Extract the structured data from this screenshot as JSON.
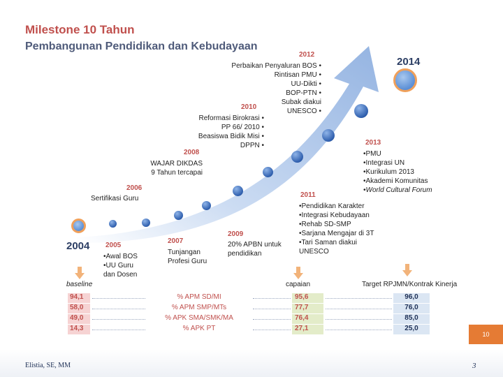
{
  "title": "Milestone 10 Tahun",
  "subtitle": "Pembangunan Pendidikan dan Kebudayaan",
  "timeline": {
    "start_year": "2004",
    "end_year": "2014",
    "m2005": {
      "year": "2005",
      "items": [
        "Awal BOS",
        "UU Guru dan Dosen"
      ]
    },
    "m2006": {
      "year": "2006",
      "items": [
        "Sertifikasi Guru"
      ]
    },
    "m2007": {
      "year": "2007",
      "items": [
        "Tunjangan Profesi Guru"
      ]
    },
    "m2008": {
      "year": "2008",
      "items": [
        "WAJAR DIKDAS",
        "9 Tahun  tercapai"
      ]
    },
    "m2009": {
      "year": "2009",
      "items": [
        "20% APBN untuk pendidikan"
      ]
    },
    "m2010": {
      "year": "2010",
      "items": [
        "Reformasi Birokrasi",
        "PP 66/ 2010",
        "Beasiswa Bidik Misi",
        "DPPN"
      ]
    },
    "m2011": {
      "year": "2011",
      "items": [
        "Pendidikan Karakter",
        "Integrasi Kebudayaan",
        "Rehab SD-SMP",
        "Sarjana Mengajar di 3T",
        "Tari Saman diakui UNESCO"
      ]
    },
    "m2012": {
      "year": "2012",
      "items": [
        "Perbaikan Penyaluran BOS",
        "Rintisan PMU",
        "UU-Dikti",
        "BOP-PTN",
        "Subak diakui UNESCO"
      ]
    },
    "m2013": {
      "year": "2013",
      "items": [
        "PMU",
        "Integrasi UN",
        "Kurikulum 2013",
        "Akademi Komunitas",
        "World Cultural Forum"
      ]
    }
  },
  "table": {
    "baseline_label": "baseline",
    "capaian_label": "capaian",
    "target_label": "Target RPJMN/Kontrak Kinerja",
    "rows": [
      {
        "baseline": "94,1",
        "name": "% APM SD/MI",
        "capaian": "95,6",
        "target": "96,0"
      },
      {
        "baseline": "58,0",
        "name": "% APM SMP/MTs",
        "capaian": "77,7",
        "target": "76,0"
      },
      {
        "baseline": "49,0",
        "name": "% APK SMA/SMK/MA",
        "capaian": "76,4",
        "target": "85,0"
      },
      {
        "baseline": "14,3",
        "name": "% APK PT",
        "capaian": "27,1",
        "target": "25,0"
      }
    ]
  },
  "footer": {
    "author": "Elistia, SE, MM",
    "page": "3",
    "slide_number": "10"
  },
  "colors": {
    "accent_red": "#c0504d",
    "navy": "#2c3e64",
    "arrow_blue": "#a9c4e9",
    "orange": "#e57b34"
  }
}
